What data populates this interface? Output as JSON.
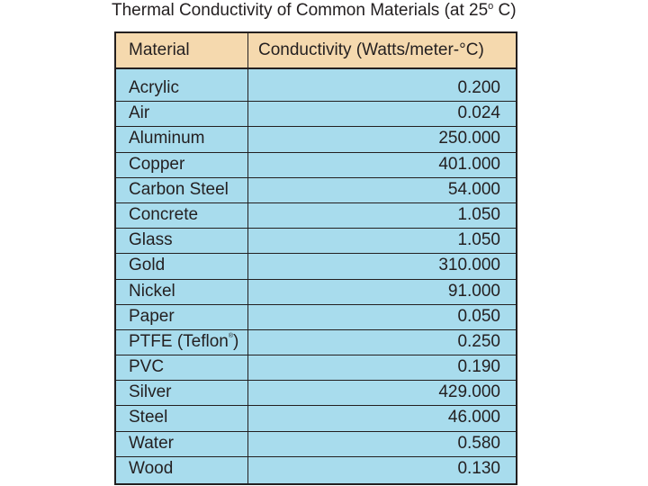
{
  "title": {
    "main": "Thermal Conductivity of Common Materials (at 25",
    "degree_sup": "o",
    "suffix": " C)"
  },
  "table": {
    "headers": {
      "material": "Material",
      "conductivity": "Conductivity (Watts/meter-°C)"
    },
    "rows": [
      {
        "material": "Acrylic",
        "value": "0.200"
      },
      {
        "material": "Air",
        "value": "0.024"
      },
      {
        "material": "Aluminum",
        "value": "250.000"
      },
      {
        "material": "Copper",
        "value": "401.000"
      },
      {
        "material": "Carbon Steel",
        "value": "54.000"
      },
      {
        "material": "Concrete",
        "value": "1.050"
      },
      {
        "material": "Glass",
        "value": "1.050"
      },
      {
        "material": "Gold",
        "value": "310.000"
      },
      {
        "material": "Nickel",
        "value": "91.000"
      },
      {
        "material": "Paper",
        "value": "0.050"
      },
      {
        "material": "PTFE (Teflon",
        "reg": "®",
        "suffix": ")",
        "value": "0.250"
      },
      {
        "material": "PVC",
        "value": "0.190"
      },
      {
        "material": "Silver",
        "value": "429.000"
      },
      {
        "material": "Steel",
        "value": "46.000"
      },
      {
        "material": "Water",
        "value": "0.580"
      },
      {
        "material": "Wood",
        "value": "0.130"
      }
    ]
  },
  "colors": {
    "header_bg": "#f5d9ae",
    "body_bg": "#a8dced",
    "text": "#231f20"
  }
}
